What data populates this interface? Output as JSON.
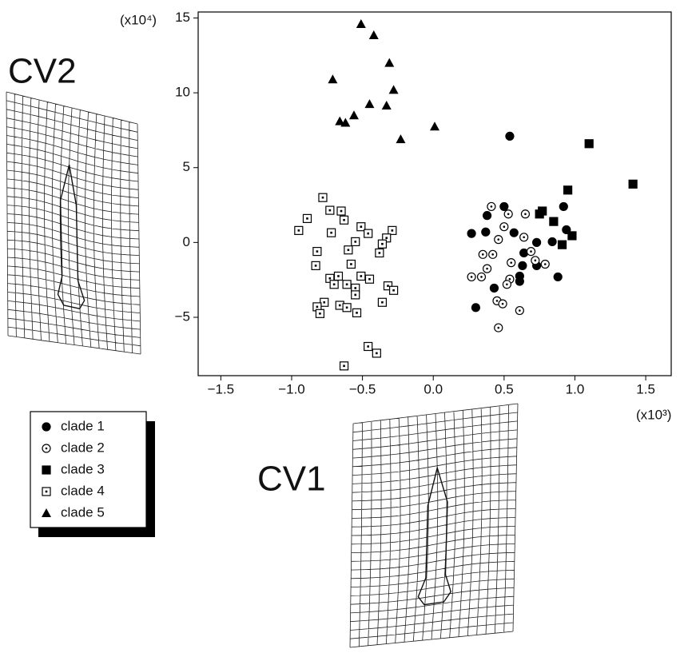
{
  "chart_data": {
    "type": "scatter",
    "y_unit_label": "(x10⁴)",
    "x_unit_label": "(x10³)",
    "panel_labels": [
      "CV2",
      "CV1"
    ],
    "xlim": [
      -1.66,
      1.68
    ],
    "ylim": [
      -8.9,
      15.4
    ],
    "xticks": [
      {
        "value": -1.5,
        "label": "−1.5"
      },
      {
        "value": -1,
        "label": "−1.0"
      },
      {
        "value": -0.5,
        "label": "−0.5"
      },
      {
        "value": 0,
        "label": "0.0"
      },
      {
        "value": 0.5,
        "label": "0.5"
      },
      {
        "value": 1,
        "label": "1.0"
      },
      {
        "value": 1.5,
        "label": "1.5"
      }
    ],
    "yticks": [
      {
        "value": -5,
        "label": "−5"
      },
      0,
      5,
      10,
      15
    ],
    "grid": false,
    "series": [
      {
        "name": "clade 1",
        "color": "#000000",
        "marker": "circle-filled",
        "x": [
          0.54,
          0.5,
          0.38,
          0.27,
          0.57,
          0.92,
          0.94,
          0.84,
          0.73,
          0.64,
          0.63,
          0.73,
          0.61,
          0.43,
          0.3,
          0.88,
          0.61,
          0.37
        ],
        "y": [
          7.1,
          2.4,
          1.8,
          0.6,
          0.65,
          2.4,
          0.85,
          0.05,
          0.0,
          -0.7,
          -1.55,
          -1.55,
          -2.25,
          -3.05,
          -4.35,
          -2.3,
          -2.6,
          0.7
        ]
      },
      {
        "name": "clade 2",
        "color": "#000000",
        "marker": "circle-dot",
        "x": [
          0.41,
          0.53,
          0.65,
          0.5,
          0.64,
          0.46,
          0.35,
          0.42,
          0.69,
          0.72,
          0.79,
          0.27,
          0.34,
          0.54,
          0.52,
          0.38,
          0.45,
          0.49,
          0.61,
          0.46,
          0.55
        ],
        "y": [
          2.4,
          1.9,
          1.9,
          1.05,
          0.35,
          0.2,
          -0.8,
          -0.8,
          -0.6,
          -1.2,
          -1.45,
          -2.3,
          -2.3,
          -2.45,
          -2.8,
          -1.75,
          -3.9,
          -4.1,
          -4.55,
          -5.7,
          -1.35
        ]
      },
      {
        "name": "clade 3",
        "color": "#000000",
        "marker": "square-filled",
        "x": [
          1.1,
          1.41,
          0.95,
          0.77,
          0.85,
          0.98,
          0.91,
          0.75
        ],
        "y": [
          6.6,
          3.9,
          3.5,
          2.1,
          1.4,
          0.45,
          -0.15,
          1.9
        ]
      },
      {
        "name": "clade 4",
        "color": "#000000",
        "marker": "square-dot",
        "x": [
          -0.78,
          -0.89,
          -0.73,
          -0.65,
          -0.63,
          -0.51,
          -0.95,
          -0.72,
          -0.46,
          -0.29,
          -0.33,
          -0.36,
          -0.55,
          -0.6,
          -0.82,
          -0.38,
          -0.83,
          -0.58,
          -0.73,
          -0.67,
          -0.51,
          -0.45,
          -0.7,
          -0.61,
          -0.55,
          -0.55,
          -0.32,
          -0.28,
          -0.77,
          -0.82,
          -0.8,
          -0.66,
          -0.61,
          -0.54,
          -0.36,
          -0.46,
          -0.4,
          -0.63
        ],
        "y": [
          3.0,
          1.6,
          2.15,
          2.1,
          1.5,
          1.05,
          0.8,
          0.65,
          0.6,
          0.8,
          0.3,
          -0.1,
          0.05,
          -0.5,
          -0.6,
          -0.7,
          -1.55,
          -1.45,
          -2.4,
          -2.25,
          -2.25,
          -2.45,
          -2.8,
          -2.8,
          -3.05,
          -3.5,
          -2.9,
          -3.2,
          -4.0,
          -4.3,
          -4.75,
          -4.2,
          -4.35,
          -4.7,
          -4.0,
          -6.95,
          -7.4,
          -8.25
        ]
      },
      {
        "name": "clade 5",
        "color": "#000000",
        "marker": "triangle-filled",
        "x": [
          -0.51,
          -0.42,
          -0.31,
          -0.71,
          -0.28,
          -0.45,
          -0.33,
          -0.56,
          -0.66,
          -0.62,
          0.01,
          -0.23
        ],
        "y": [
          14.6,
          13.85,
          12.0,
          10.9,
          10.2,
          9.25,
          9.15,
          8.5,
          8.1,
          8.0,
          7.75,
          6.9
        ]
      }
    ]
  }
}
